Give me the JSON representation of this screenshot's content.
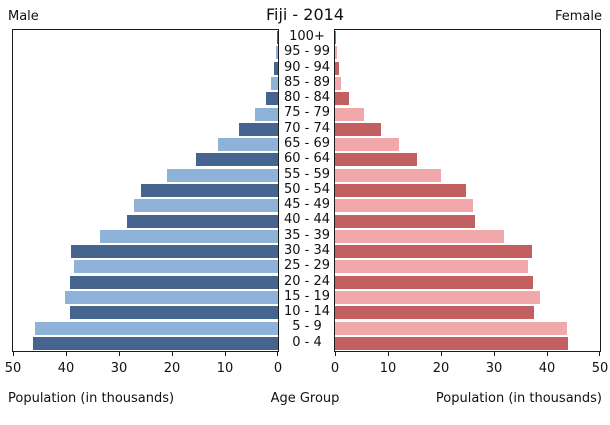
{
  "header": {
    "title": "Fiji - 2014",
    "male_label": "Male",
    "female_label": "Female"
  },
  "footer": {
    "left_axis_label": "Population (in thousands)",
    "center_label": "Age Group",
    "right_axis_label": "Population (in thousands)"
  },
  "chart_data": {
    "type": "bar",
    "subtype": "population_pyramid",
    "title": "Fiji - 2014",
    "categories": [
      "100+",
      "95 - 99",
      "90 - 94",
      "85 - 89",
      "80 - 84",
      "75 - 79",
      "70 - 74",
      "65 - 69",
      "60 - 64",
      "55 - 59",
      "50 - 54",
      "45 - 49",
      "40 - 44",
      "35 - 39",
      "30 - 34",
      "25 - 29",
      "20 - 24",
      "15 - 19",
      "10 - 14",
      "5 - 9",
      "0 - 4"
    ],
    "categories_order": "top_to_bottom",
    "series": [
      {
        "name": "Male",
        "side": "left",
        "values": [
          0.1,
          0.3,
          0.7,
          1.4,
          2.3,
          4.3,
          7.3,
          11.4,
          15.4,
          21.0,
          25.8,
          27.1,
          28.4,
          33.6,
          39.0,
          38.4,
          39.2,
          40.1,
          39.3,
          45.8,
          46.3
        ]
      },
      {
        "name": "Female",
        "side": "right",
        "values": [
          0.2,
          0.4,
          0.7,
          1.2,
          2.6,
          5.4,
          8.6,
          12.0,
          15.5,
          20.0,
          24.8,
          26.1,
          26.4,
          31.8,
          37.2,
          36.5,
          37.3,
          38.7,
          37.6,
          43.7,
          44.0
        ]
      }
    ],
    "xlabel": "Population (in thousands)",
    "ylabel": "Age Group",
    "xlim": [
      0,
      50
    ],
    "xticks": [
      0,
      10,
      20,
      30,
      40,
      50
    ],
    "grid": false,
    "legend": "none",
    "colors": {
      "male_dark": "#45658f",
      "male_light": "#8fb2d9",
      "female_dark": "#c26061",
      "female_light": "#f1a8ab",
      "frame": "#1a1a1a",
      "background": "#ffffff"
    }
  }
}
